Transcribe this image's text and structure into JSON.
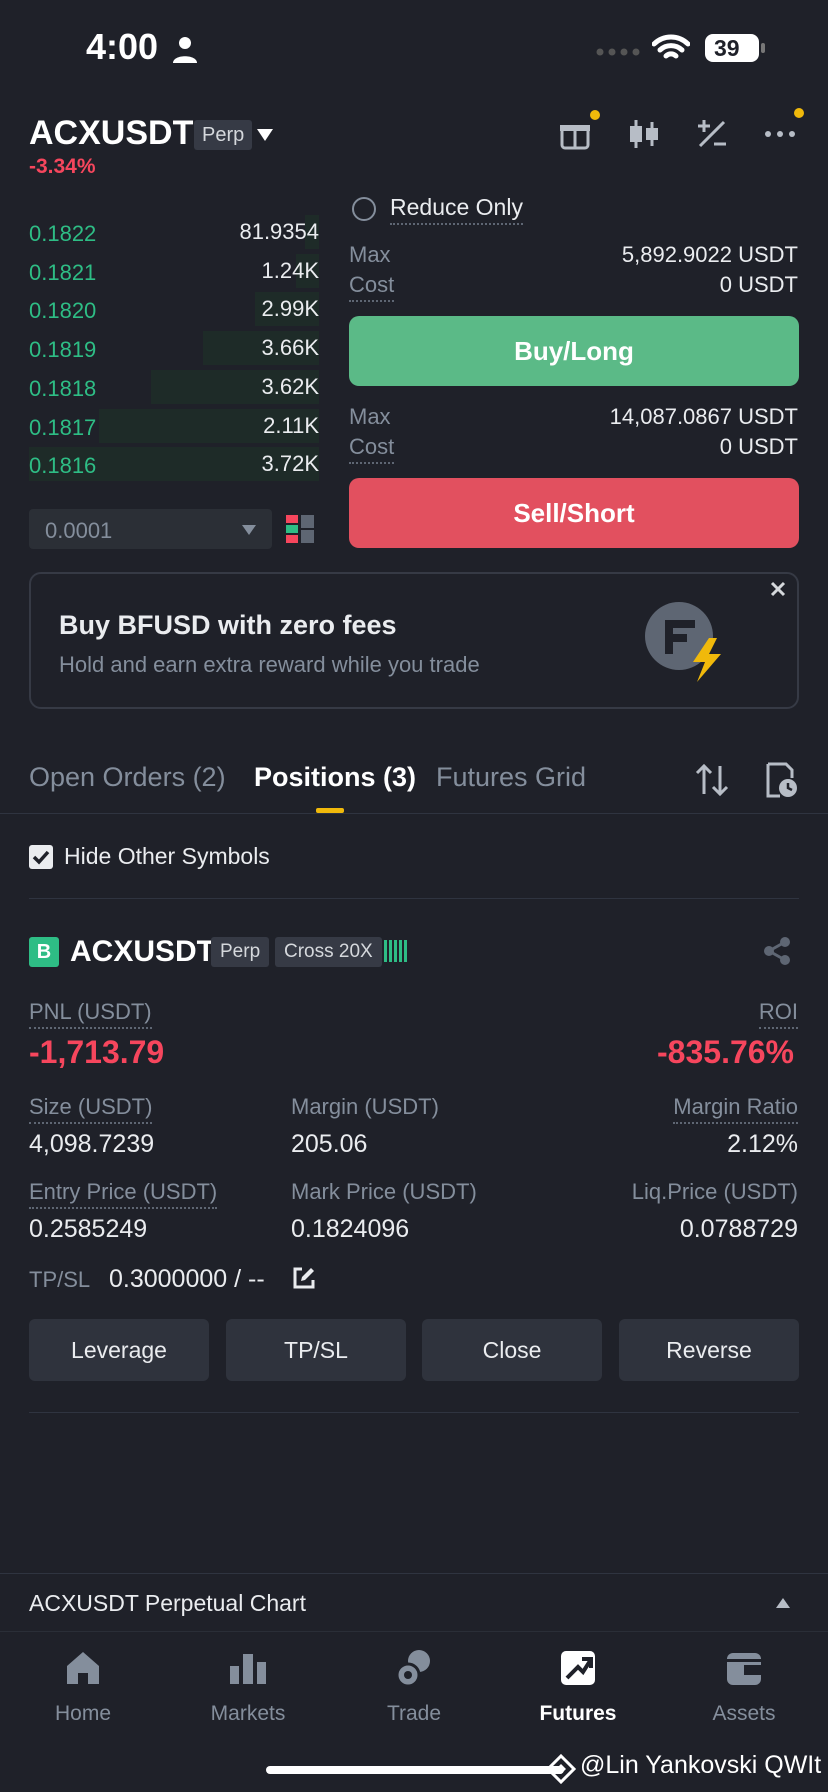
{
  "status_bar": {
    "time": "4:00",
    "battery": "39"
  },
  "header": {
    "symbol": "ACXUSDT",
    "type_badge": "Perp",
    "change": "-3.34%"
  },
  "order_book": {
    "rows": [
      {
        "price": "0.1822",
        "qty": "81.9354",
        "depth": 0.05
      },
      {
        "price": "0.1821",
        "qty": "1.24K",
        "depth": 0.08
      },
      {
        "price": "0.1820",
        "qty": "2.99K",
        "depth": 0.22
      },
      {
        "price": "0.1819",
        "qty": "3.66K",
        "depth": 0.4
      },
      {
        "price": "0.1818",
        "qty": "3.62K",
        "depth": 0.58
      },
      {
        "price": "0.1817",
        "qty": "2.11K",
        "depth": 0.76
      },
      {
        "price": "0.1816",
        "qty": "3.72K",
        "depth": 1.0
      }
    ],
    "step": "0.0001"
  },
  "order_form": {
    "reduce_only": "Reduce Only",
    "buy": {
      "max_label": "Max",
      "max_value": "5,892.9022 USDT",
      "cost_label": "Cost",
      "cost_value": "0 USDT",
      "button": "Buy/Long"
    },
    "sell": {
      "max_label": "Max",
      "max_value": "14,087.0867 USDT",
      "cost_label": "Cost",
      "cost_value": "0 USDT",
      "button": "Sell/Short"
    }
  },
  "banner": {
    "title": "Buy BFUSD with zero fees",
    "subtitle": "Hold and earn extra reward while you trade"
  },
  "tabs": {
    "open_orders": "Open Orders (2)",
    "positions": "Positions (3)",
    "futures_grid": "Futures Grid"
  },
  "filter": {
    "hide_other": "Hide Other Symbols"
  },
  "position": {
    "side_badge": "B",
    "symbol": "ACXUSDT",
    "type_badge": "Perp",
    "margin_badge": "Cross 20X",
    "pnl_label": "PNL (USDT)",
    "pnl_value": "-1,713.79",
    "roi_label": "ROI",
    "roi_value": "-835.76%",
    "size_label": "Size (USDT)",
    "size_value": "4,098.7239",
    "margin_label": "Margin (USDT)",
    "margin_value": "205.06",
    "margin_ratio_label": "Margin Ratio",
    "margin_ratio_value": "2.12%",
    "entry_label": "Entry Price (USDT)",
    "entry_value": "0.2585249",
    "mark_label": "Mark Price (USDT)",
    "mark_value": "0.1824096",
    "liq_label": "Liq.Price (USDT)",
    "liq_value": "0.0788729",
    "tpsl_label": "TP/SL",
    "tpsl_value": "0.3000000 / --",
    "actions": {
      "leverage": "Leverage",
      "tpsl": "TP/SL",
      "close": "Close",
      "reverse": "Reverse"
    }
  },
  "chart_bar": {
    "title": "ACXUSDT Perpetual  Chart"
  },
  "bottom_nav": {
    "home": "Home",
    "markets": "Markets",
    "trade": "Trade",
    "futures": "Futures",
    "assets": "Assets"
  },
  "watermark": "@Lin Yankovski QWIt",
  "colors": {
    "buy": "#5bba87",
    "sell": "#e2505f",
    "accent": "#f0b90b",
    "up": "#2ebd85",
    "down": "#f6465d"
  }
}
